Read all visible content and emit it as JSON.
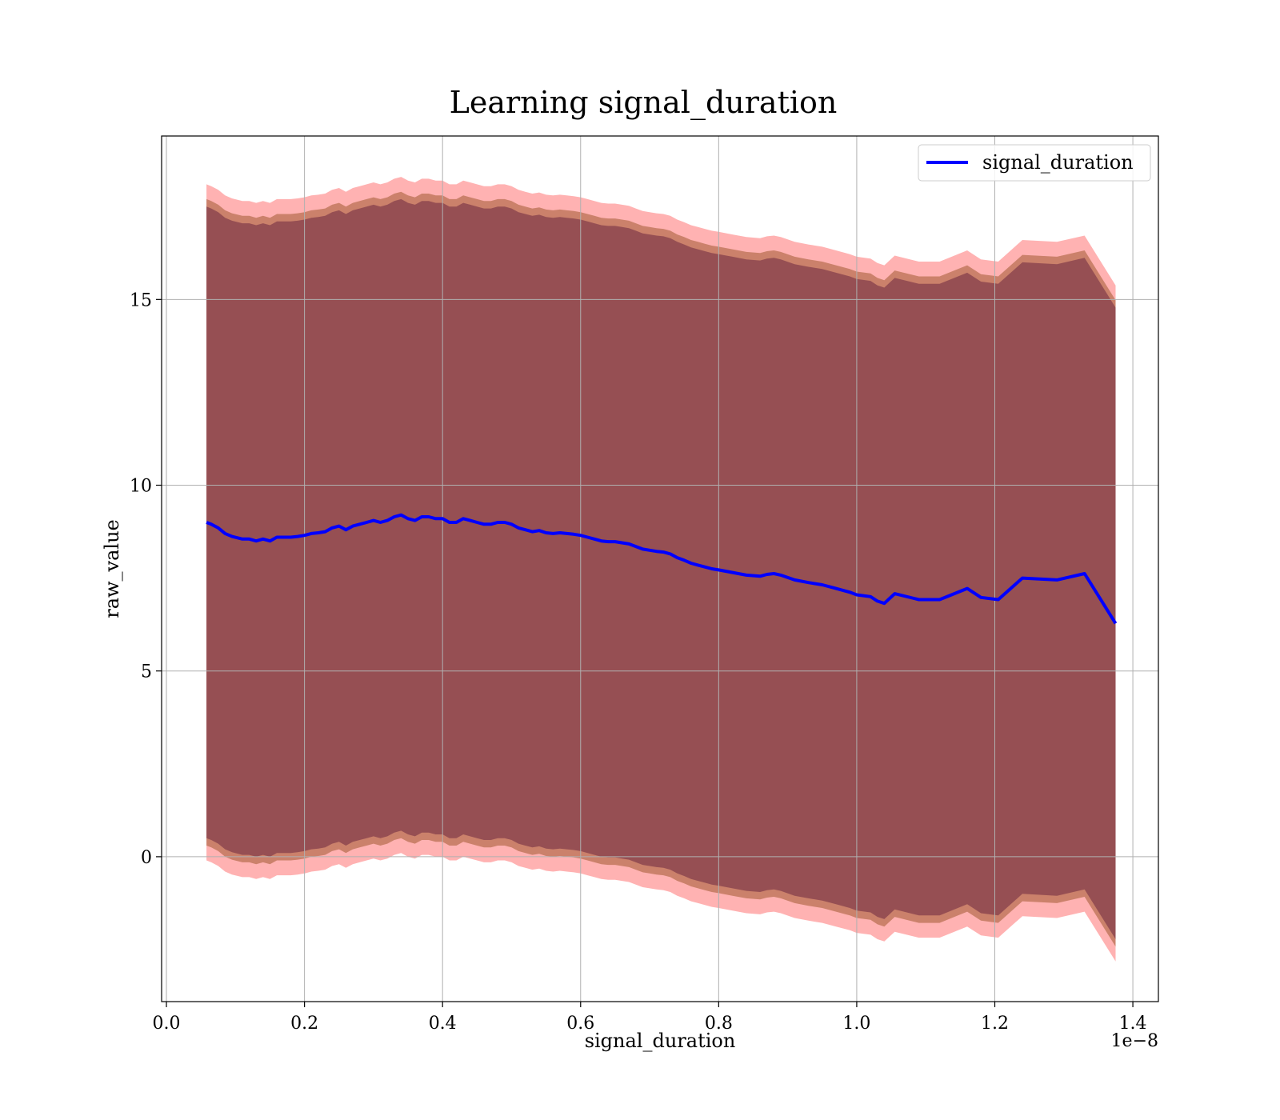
{
  "chart_data": {
    "type": "line",
    "title": "Learning signal_duration",
    "xlabel": "signal_duration",
    "ylabel": "raw_value",
    "x_offset_text": "1e−8",
    "xlim": [
      -0.007,
      1.437
    ],
    "ylim": [
      -3.9,
      19.4
    ],
    "x_ticks": [
      0.0,
      0.2,
      0.4,
      0.6,
      0.8,
      1.0,
      1.2,
      1.4
    ],
    "x_tick_labels": [
      "0.0",
      "0.2",
      "0.4",
      "0.6",
      "0.8",
      "1.0",
      "1.2",
      "1.4"
    ],
    "y_ticks": [
      0,
      5,
      10,
      15
    ],
    "y_tick_labels": [
      "0",
      "5",
      "10",
      "15"
    ],
    "grid": true,
    "legend": {
      "position": "top-right",
      "entries": [
        "signal_duration"
      ]
    },
    "colors": {
      "line": "#0000ff",
      "outer_band": "#ff0000",
      "inner_band": "#8b4513",
      "core_band": "#6b2740"
    },
    "series": [
      {
        "name": "signal_duration",
        "x": [
          0.058,
          0.065,
          0.075,
          0.085,
          0.095,
          0.11,
          0.12,
          0.13,
          0.14,
          0.15,
          0.16,
          0.17,
          0.18,
          0.19,
          0.2,
          0.21,
          0.22,
          0.23,
          0.24,
          0.25,
          0.26,
          0.27,
          0.28,
          0.29,
          0.3,
          0.31,
          0.32,
          0.33,
          0.34,
          0.35,
          0.36,
          0.37,
          0.38,
          0.39,
          0.4,
          0.41,
          0.42,
          0.43,
          0.44,
          0.45,
          0.46,
          0.47,
          0.48,
          0.49,
          0.5,
          0.51,
          0.52,
          0.53,
          0.54,
          0.55,
          0.56,
          0.57,
          0.58,
          0.59,
          0.6,
          0.61,
          0.62,
          0.63,
          0.64,
          0.65,
          0.66,
          0.67,
          0.68,
          0.69,
          0.7,
          0.71,
          0.72,
          0.73,
          0.74,
          0.75,
          0.76,
          0.77,
          0.78,
          0.79,
          0.8,
          0.82,
          0.84,
          0.86,
          0.87,
          0.88,
          0.89,
          0.91,
          0.93,
          0.95,
          0.97,
          0.99,
          1.0,
          1.02,
          1.03,
          1.04,
          1.055,
          1.09,
          1.12,
          1.16,
          1.18,
          1.205,
          1.24,
          1.29,
          1.33,
          1.375
        ],
        "y": [
          9.0,
          8.95,
          8.85,
          8.7,
          8.62,
          8.55,
          8.55,
          8.5,
          8.55,
          8.5,
          8.6,
          8.6,
          8.6,
          8.62,
          8.65,
          8.7,
          8.72,
          8.75,
          8.85,
          8.9,
          8.8,
          8.9,
          8.95,
          9.0,
          9.05,
          9.0,
          9.05,
          9.15,
          9.2,
          9.1,
          9.05,
          9.15,
          9.15,
          9.1,
          9.1,
          9.0,
          9.0,
          9.1,
          9.05,
          9.0,
          8.95,
          8.95,
          9.0,
          9.0,
          8.95,
          8.85,
          8.8,
          8.75,
          8.78,
          8.72,
          8.7,
          8.72,
          8.7,
          8.68,
          8.65,
          8.6,
          8.55,
          8.5,
          8.48,
          8.48,
          8.45,
          8.42,
          8.35,
          8.28,
          8.25,
          8.22,
          8.2,
          8.15,
          8.05,
          7.98,
          7.9,
          7.85,
          7.8,
          7.75,
          7.72,
          7.65,
          7.58,
          7.55,
          7.6,
          7.62,
          7.58,
          7.45,
          7.38,
          7.32,
          7.22,
          7.12,
          7.05,
          7.0,
          6.88,
          6.82,
          7.08,
          6.92,
          6.92,
          7.22,
          6.98,
          6.92,
          7.5,
          7.45,
          7.62,
          6.28
        ]
      }
    ],
    "bands": {
      "outer_half_width": 9.1,
      "inner_half_width": 8.7,
      "core_half_width": 8.5
    }
  }
}
